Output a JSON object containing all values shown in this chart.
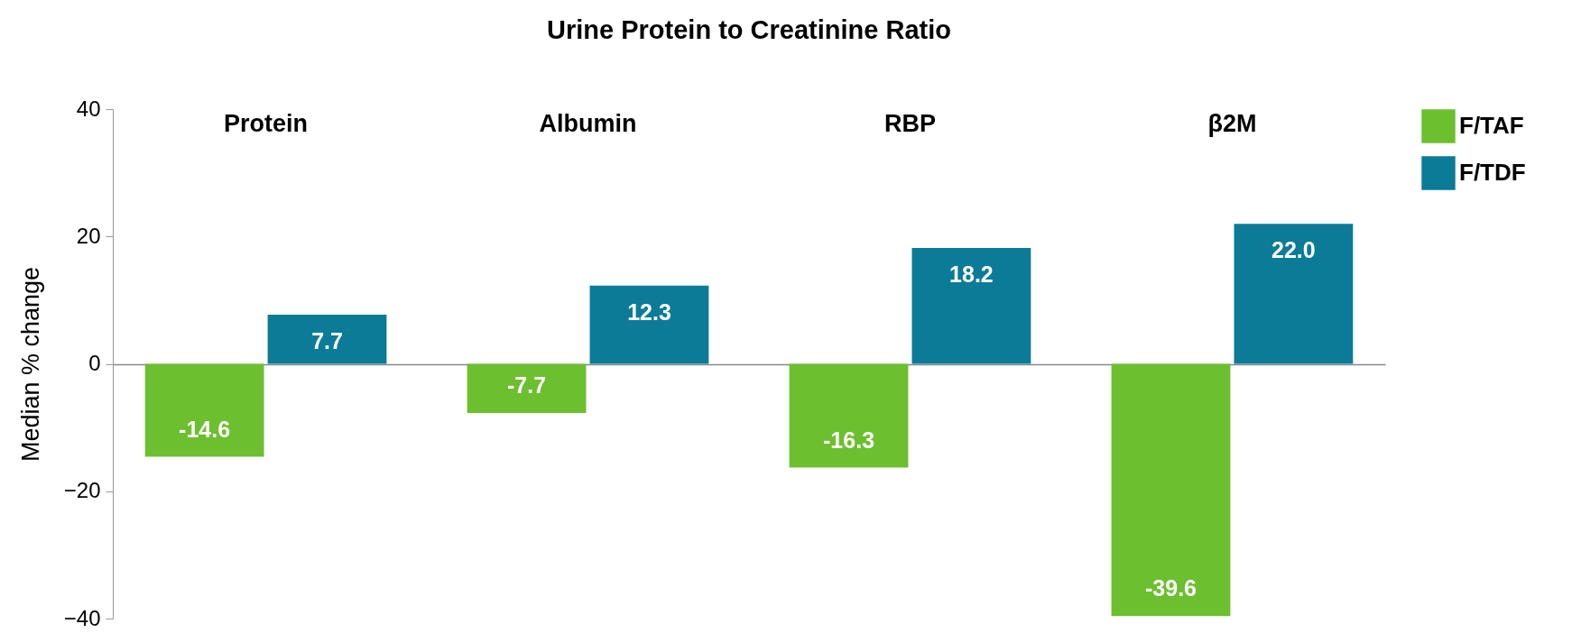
{
  "chart_data": {
    "type": "bar",
    "title": "Urine Protein to Creatinine Ratio",
    "ylabel": "Median % change",
    "categories": [
      "Protein",
      "Albumin",
      "RBP",
      "β2M"
    ],
    "series": [
      {
        "name": "F/TAF",
        "color": "#6cbf2e",
        "values": [
          -14.6,
          -7.7,
          -16.3,
          -39.6
        ],
        "value_labels": [
          "-14.6",
          "-7.7",
          "-16.3",
          "-39.6"
        ]
      },
      {
        "name": "F/TDF",
        "color": "#0b7b98",
        "values": [
          7.7,
          12.3,
          18.2,
          22.0
        ],
        "value_labels": [
          "7.7",
          "12.3",
          "18.2",
          "22.0"
        ]
      }
    ],
    "ylim": [
      -40,
      40
    ],
    "yticks": [
      -40,
      -20,
      0,
      20,
      40
    ],
    "legend": "right"
  }
}
